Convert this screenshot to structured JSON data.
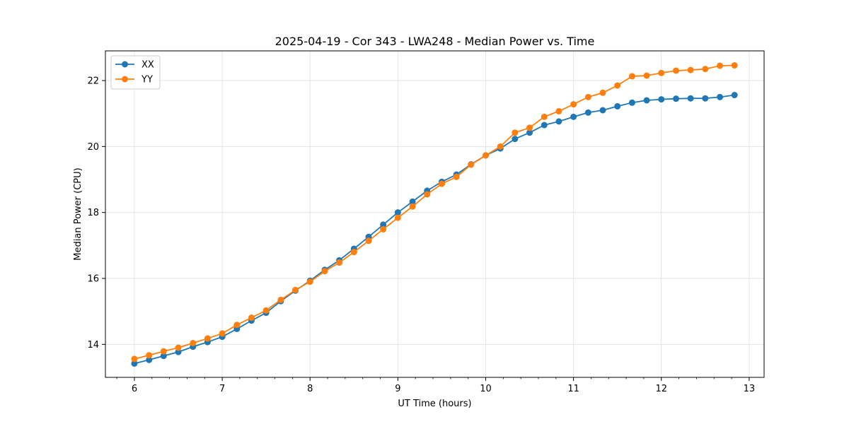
{
  "chart_data": {
    "type": "line",
    "title": "2025-04-19 - Cor 343 - LWA248 - Median Power vs. Time",
    "xlabel": "UT Time (hours)",
    "ylabel": "Median Power (CPU)",
    "xlim": [
      5.67,
      13.17
    ],
    "ylim": [
      13.0,
      22.9
    ],
    "xticks": [
      6,
      7,
      8,
      9,
      10,
      11,
      12,
      13
    ],
    "xtick_labels": [
      "6",
      "7",
      "8",
      "9",
      "10",
      "11",
      "12",
      "13"
    ],
    "yticks": [
      14,
      16,
      18,
      20,
      22
    ],
    "ytick_labels": [
      "14",
      "16",
      "18",
      "20",
      "22"
    ],
    "grid": true,
    "legend_position": "top-left",
    "x": [
      6.0,
      6.167,
      6.333,
      6.5,
      6.667,
      6.833,
      7.0,
      7.167,
      7.333,
      7.5,
      7.667,
      7.833,
      8.0,
      8.167,
      8.333,
      8.5,
      8.667,
      8.833,
      9.0,
      9.167,
      9.333,
      9.5,
      9.667,
      9.833,
      10.0,
      10.167,
      10.333,
      10.5,
      10.667,
      10.833,
      11.0,
      11.167,
      11.333,
      11.5,
      11.667,
      11.833,
      12.0,
      12.167,
      12.333,
      12.5,
      12.667,
      12.833
    ],
    "series": [
      {
        "name": "XX",
        "color": "#1f77b4",
        "values": [
          13.42,
          13.53,
          13.65,
          13.77,
          13.93,
          14.07,
          14.23,
          14.47,
          14.72,
          14.96,
          15.31,
          15.63,
          15.93,
          16.26,
          16.55,
          16.9,
          17.26,
          17.63,
          18.0,
          18.33,
          18.66,
          18.93,
          19.15,
          19.46,
          19.73,
          19.94,
          20.23,
          20.42,
          20.65,
          20.76,
          20.9,
          21.03,
          21.1,
          21.22,
          21.33,
          21.4,
          21.43,
          21.45,
          21.46,
          21.46,
          21.5,
          21.56
        ]
      },
      {
        "name": "YY",
        "color": "#ff7f0e",
        "values": [
          13.56,
          13.67,
          13.79,
          13.9,
          14.04,
          14.18,
          14.33,
          14.59,
          14.81,
          15.03,
          15.35,
          15.65,
          15.9,
          16.22,
          16.48,
          16.8,
          17.14,
          17.49,
          17.84,
          18.18,
          18.55,
          18.87,
          19.08,
          19.45,
          19.73,
          20.0,
          20.42,
          20.57,
          20.9,
          21.07,
          21.28,
          21.5,
          21.63,
          21.85,
          22.13,
          22.15,
          22.23,
          22.3,
          22.32,
          22.35,
          22.45,
          22.46
        ]
      }
    ]
  }
}
